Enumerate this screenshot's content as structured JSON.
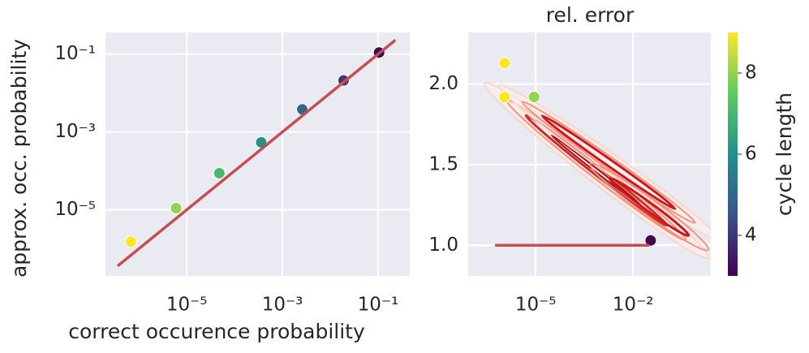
{
  "chart_data": [
    {
      "type": "scatter",
      "xlabel": "correct occurence probability",
      "ylabel": "approx. occ. probability",
      "xscale": "log",
      "yscale": "log",
      "grid": true,
      "xlim": [
        2e-07,
        0.46
      ],
      "ylim": [
        2e-07,
        0.36
      ],
      "xticks": [
        {
          "value": 1e-05,
          "label": "10⁻⁵"
        },
        {
          "value": 0.001,
          "label": "10⁻³"
        },
        {
          "value": 0.1,
          "label": "10⁻¹"
        }
      ],
      "yticks": [
        {
          "value": 1e-05,
          "label": "10⁻⁵"
        },
        {
          "value": 0.001,
          "label": "10⁻³"
        },
        {
          "value": 0.1,
          "label": "10⁻¹"
        }
      ],
      "points": {
        "x": [
          6.8e-07,
          6e-06,
          4.8e-05,
          0.00036,
          0.0026,
          0.019,
          0.105
        ],
        "y": [
          1.5e-06,
          1.1e-05,
          8.7e-05,
          0.00054,
          0.0038,
          0.021,
          0.11
        ],
        "c": [
          9,
          8,
          7,
          6,
          5,
          4,
          3
        ]
      },
      "line": {
        "x": [
          3.6e-07,
          0.23
        ],
        "y": [
          3.6e-07,
          0.23
        ],
        "color": "#c44e52"
      }
    },
    {
      "type": "scatter",
      "title": "rel. error",
      "xscale": "log",
      "yscale": "linear",
      "grid": true,
      "xlim": [
        8.3e-08,
        2.5
      ],
      "ylim": [
        0.81,
        2.32
      ],
      "xticks": [
        {
          "value": 1e-05,
          "label": "10⁻⁵"
        },
        {
          "value": 0.01,
          "label": "10⁻²"
        }
      ],
      "yticks": [
        {
          "value": 1,
          "label": "1.0"
        },
        1.5,
        {
          "value": 2,
          "label": "2.0"
        }
      ],
      "points": {
        "x": [
          1.1e-06,
          1.1e-06,
          8.9e-06,
          0.035
        ],
        "y": [
          2.13,
          1.92,
          1.92,
          1.03
        ],
        "c": [
          9,
          9,
          8,
          3
        ]
      },
      "line": {
        "x": [
          5.6e-07,
          0.032
        ],
        "y": [
          1,
          1
        ],
        "color": "#c44e52"
      },
      "colorbar": {
        "label": "cycle length",
        "colormap": "viridis",
        "clim": [
          3,
          9
        ],
        "ticks": [
          4,
          6,
          8
        ]
      }
    }
  ]
}
